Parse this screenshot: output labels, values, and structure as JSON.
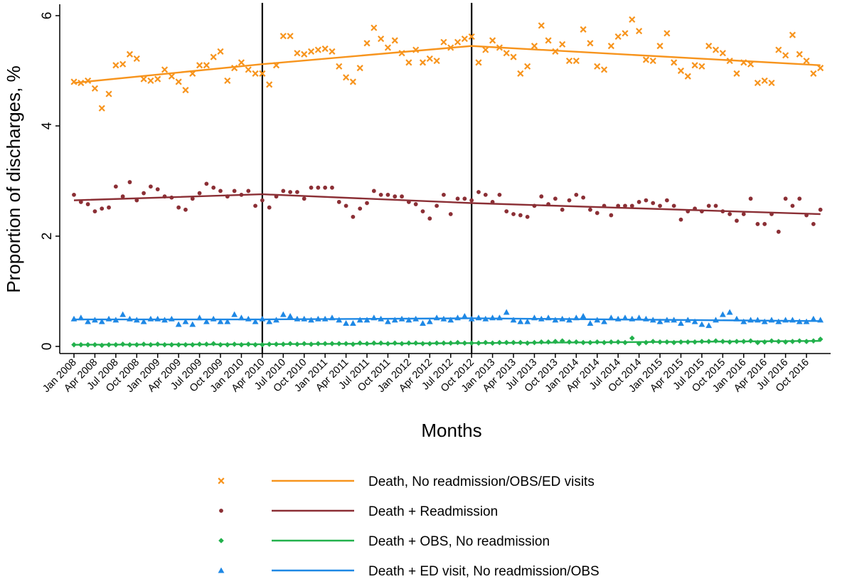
{
  "chart_data": {
    "type": "scatter",
    "title": "",
    "xlabel": "Months",
    "ylabel": "Proportion of discharges, %",
    "ylim": [
      0,
      6
    ],
    "yticks": [
      0,
      2,
      4,
      6
    ],
    "x_start": "Jan 2008",
    "x_tick_labels": [
      "Jan 2008",
      "Apr 2008",
      "Jul 2008",
      "Oct 2008",
      "Jan 2009",
      "Apr 2009",
      "Jul 2009",
      "Oct 2009",
      "Jan 2010",
      "Apr 2010",
      "Jul 2010",
      "Oct 2010",
      "Jan 2011",
      "Apr 2011",
      "Jul 2011",
      "Oct 2011",
      "Jan 2012",
      "Apr 2012",
      "Jul 2012",
      "Oct 2012",
      "Jan 2013",
      "Apr 2013",
      "Jul 2013",
      "Oct 2013",
      "Jan 2014",
      "Apr 2014",
      "Jul 2014",
      "Oct 2014",
      "Jan 2015",
      "Apr 2015",
      "Jul 2015",
      "Oct 2015",
      "Jan 2016",
      "Apr 2016",
      "Jul 2016",
      "Oct 2016"
    ],
    "vertical_lines": [
      "Apr 2010",
      "Oct 2012"
    ],
    "grid": false,
    "legend_position": "bottom",
    "series": [
      {
        "name": "Death, No readmission/OBS/ED visits",
        "marker": "x",
        "color": "#f7941d",
        "values": [
          4.8,
          4.78,
          4.82,
          4.68,
          4.32,
          4.58,
          5.1,
          5.12,
          5.3,
          5.22,
          4.85,
          4.82,
          4.85,
          5.02,
          4.9,
          4.8,
          4.65,
          4.95,
          5.1,
          5.1,
          5.25,
          5.35,
          4.82,
          5.05,
          5.15,
          5.02,
          4.95,
          4.95,
          4.75,
          5.1,
          5.63,
          5.63,
          5.32,
          5.3,
          5.35,
          5.38,
          5.4,
          5.35,
          5.08,
          4.88,
          4.8,
          5.05,
          5.5,
          5.78,
          5.58,
          5.42,
          5.55,
          5.32,
          5.15,
          5.38,
          5.15,
          5.22,
          5.18,
          5.52,
          5.42,
          5.52,
          5.58,
          5.62,
          5.15,
          5.38,
          5.55,
          5.42,
          5.32,
          5.25,
          4.95,
          5.08,
          5.45,
          5.82,
          5.55,
          5.35,
          5.48,
          5.18,
          5.18,
          5.75,
          5.5,
          5.08,
          5.02,
          5.45,
          5.62,
          5.68,
          5.93,
          5.72,
          5.2,
          5.18,
          5.45,
          5.68,
          5.15,
          5.0,
          4.9,
          5.1,
          5.08,
          5.45,
          5.38,
          5.32,
          5.18,
          4.95,
          5.15,
          5.12,
          4.78,
          4.82,
          4.78,
          5.38,
          5.28,
          5.65,
          5.3,
          5.18,
          4.95,
          5.05
        ],
        "trend": [
          [
            0,
            4.78
          ],
          [
            27,
            5.12
          ],
          [
            57,
            5.45
          ],
          [
            107,
            5.1
          ]
        ]
      },
      {
        "name": "Death +  Readmission",
        "marker": "dot",
        "color": "#8b2f35",
        "values": [
          2.75,
          2.62,
          2.58,
          2.45,
          2.5,
          2.52,
          2.9,
          2.72,
          2.98,
          2.65,
          2.78,
          2.9,
          2.85,
          2.72,
          2.7,
          2.52,
          2.48,
          2.68,
          2.78,
          2.95,
          2.88,
          2.82,
          2.72,
          2.82,
          2.75,
          2.82,
          2.55,
          2.65,
          2.52,
          2.72,
          2.82,
          2.8,
          2.8,
          2.68,
          2.88,
          2.88,
          2.88,
          2.88,
          2.62,
          2.55,
          2.35,
          2.5,
          2.6,
          2.82,
          2.75,
          2.75,
          2.72,
          2.72,
          2.62,
          2.58,
          2.45,
          2.32,
          2.55,
          2.75,
          2.4,
          2.68,
          2.68,
          2.65,
          2.8,
          2.75,
          2.62,
          2.75,
          2.45,
          2.4,
          2.38,
          2.35,
          2.55,
          2.72,
          2.58,
          2.68,
          2.48,
          2.65,
          2.75,
          2.7,
          2.48,
          2.42,
          2.55,
          2.38,
          2.55,
          2.55,
          2.55,
          2.62,
          2.65,
          2.6,
          2.55,
          2.65,
          2.55,
          2.3,
          2.45,
          2.5,
          2.45,
          2.55,
          2.55,
          2.45,
          2.4,
          2.28,
          2.4,
          2.68,
          2.22,
          2.22,
          2.4,
          2.08,
          2.68,
          2.55,
          2.68,
          2.38,
          2.22,
          2.48
        ],
        "trend": [
          [
            0,
            2.65
          ],
          [
            27,
            2.76
          ],
          [
            57,
            2.6
          ],
          [
            107,
            2.4
          ]
        ]
      },
      {
        "name": "Death + OBS, No readmission",
        "marker": "diamond",
        "color": "#22b14c",
        "values": [
          0.03,
          0.03,
          0.03,
          0.03,
          0.02,
          0.03,
          0.03,
          0.04,
          0.03,
          0.03,
          0.04,
          0.03,
          0.04,
          0.03,
          0.03,
          0.03,
          0.03,
          0.03,
          0.04,
          0.04,
          0.05,
          0.03,
          0.03,
          0.04,
          0.03,
          0.04,
          0.03,
          0.03,
          0.04,
          0.04,
          0.04,
          0.05,
          0.04,
          0.05,
          0.04,
          0.05,
          0.05,
          0.05,
          0.05,
          0.05,
          0.04,
          0.06,
          0.05,
          0.06,
          0.06,
          0.05,
          0.06,
          0.05,
          0.06,
          0.06,
          0.05,
          0.05,
          0.06,
          0.06,
          0.06,
          0.07,
          0.06,
          0.06,
          0.06,
          0.07,
          0.06,
          0.07,
          0.07,
          0.07,
          0.07,
          0.06,
          0.07,
          0.08,
          0.08,
          0.09,
          0.1,
          0.08,
          0.08,
          0.07,
          0.07,
          0.08,
          0.07,
          0.08,
          0.08,
          0.07,
          0.15,
          0.05,
          0.07,
          0.09,
          0.08,
          0.08,
          0.07,
          0.08,
          0.08,
          0.08,
          0.09,
          0.09,
          0.1,
          0.09,
          0.08,
          0.09,
          0.09,
          0.1,
          0.07,
          0.08,
          0.1,
          0.09,
          0.08,
          0.09,
          0.1,
          0.09,
          0.1,
          0.13
        ],
        "trend": [
          [
            0,
            0.03
          ],
          [
            27,
            0.04
          ],
          [
            57,
            0.06
          ],
          [
            107,
            0.1
          ]
        ]
      },
      {
        "name": "Death + ED visit, No readmission/OBS",
        "marker": "triangle",
        "color": "#1e88e5",
        "values": [
          0.5,
          0.52,
          0.45,
          0.48,
          0.45,
          0.5,
          0.48,
          0.58,
          0.5,
          0.48,
          0.45,
          0.5,
          0.5,
          0.48,
          0.5,
          0.4,
          0.45,
          0.4,
          0.52,
          0.45,
          0.5,
          0.45,
          0.45,
          0.58,
          0.52,
          0.5,
          0.45,
          0.5,
          0.45,
          0.48,
          0.58,
          0.55,
          0.5,
          0.5,
          0.48,
          0.5,
          0.5,
          0.52,
          0.48,
          0.42,
          0.42,
          0.48,
          0.48,
          0.52,
          0.5,
          0.45,
          0.48,
          0.5,
          0.48,
          0.5,
          0.42,
          0.45,
          0.52,
          0.5,
          0.48,
          0.52,
          0.55,
          0.5,
          0.52,
          0.5,
          0.52,
          0.52,
          0.62,
          0.48,
          0.45,
          0.45,
          0.52,
          0.5,
          0.52,
          0.48,
          0.5,
          0.48,
          0.52,
          0.55,
          0.42,
          0.48,
          0.45,
          0.52,
          0.5,
          0.52,
          0.5,
          0.52,
          0.5,
          0.48,
          0.45,
          0.48,
          0.48,
          0.42,
          0.48,
          0.45,
          0.4,
          0.38,
          0.48,
          0.58,
          0.62,
          0.5,
          0.45,
          0.48,
          0.48,
          0.45,
          0.48,
          0.45,
          0.48,
          0.48,
          0.45,
          0.45,
          0.5,
          0.48
        ],
        "trend": [
          [
            0,
            0.49
          ],
          [
            27,
            0.49
          ],
          [
            57,
            0.51
          ],
          [
            107,
            0.46
          ]
        ]
      }
    ]
  }
}
